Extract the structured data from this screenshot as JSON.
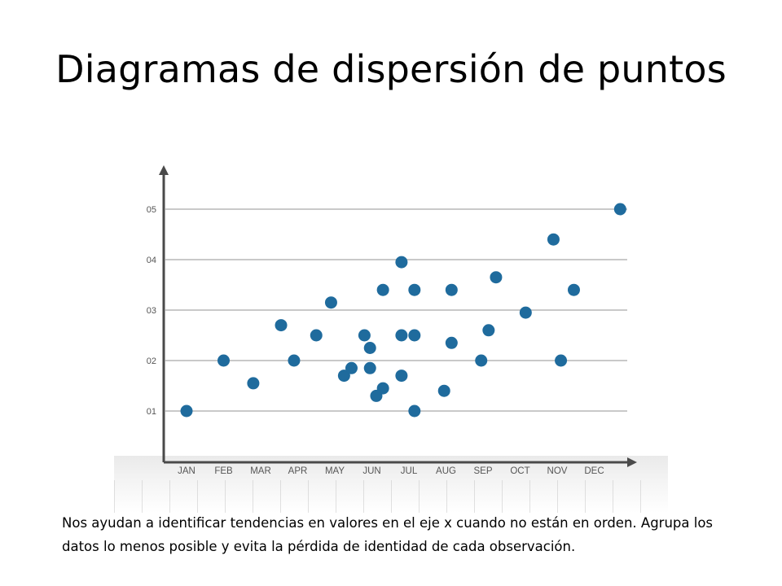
{
  "slide": {
    "title": "Diagramas de dispersión de puntos",
    "caption": "Nos ayudan a identificar tendencias en valores en el eje x cuando no están en orden. Agrupa los datos lo menos posible y evita la pérdida de identidad de cada observación."
  },
  "colors": {
    "point": "#1f6b9d",
    "axis": "#4a4a4a",
    "grid": "#c9c9c9",
    "tick_label": "#555555"
  },
  "chart_data": {
    "type": "scatter",
    "title": "",
    "xlabel": "",
    "ylabel": "",
    "categories": [
      "JAN",
      "FEB",
      "MAR",
      "APR",
      "MAY",
      "JUN",
      "JUL",
      "AUG",
      "SEP",
      "OCT",
      "NOV",
      "DEC"
    ],
    "y_ticks": [
      "01",
      "02",
      "03",
      "04",
      "05"
    ],
    "ylim": [
      0.2,
      5.2
    ],
    "grid": true,
    "points": [
      {
        "x": 1.0,
        "y": 1.0
      },
      {
        "x": 2.0,
        "y": 2.0
      },
      {
        "x": 2.8,
        "y": 1.55
      },
      {
        "x": 3.55,
        "y": 2.7
      },
      {
        "x": 3.9,
        "y": 2.0
      },
      {
        "x": 4.5,
        "y": 2.5
      },
      {
        "x": 4.9,
        "y": 3.15
      },
      {
        "x": 5.25,
        "y": 1.7
      },
      {
        "x": 5.45,
        "y": 1.85
      },
      {
        "x": 5.8,
        "y": 2.5
      },
      {
        "x": 5.95,
        "y": 2.25
      },
      {
        "x": 5.95,
        "y": 1.85
      },
      {
        "x": 6.12,
        "y": 1.3
      },
      {
        "x": 6.3,
        "y": 1.45
      },
      {
        "x": 6.3,
        "y": 3.4
      },
      {
        "x": 6.8,
        "y": 3.95
      },
      {
        "x": 6.8,
        "y": 2.5
      },
      {
        "x": 6.8,
        "y": 1.7
      },
      {
        "x": 7.15,
        "y": 3.4
      },
      {
        "x": 7.15,
        "y": 2.5
      },
      {
        "x": 7.15,
        "y": 1.0
      },
      {
        "x": 7.95,
        "y": 1.4
      },
      {
        "x": 8.15,
        "y": 3.4
      },
      {
        "x": 8.15,
        "y": 2.35
      },
      {
        "x": 8.95,
        "y": 2.0
      },
      {
        "x": 9.15,
        "y": 2.6
      },
      {
        "x": 9.35,
        "y": 3.65
      },
      {
        "x": 10.15,
        "y": 2.95
      },
      {
        "x": 10.9,
        "y": 4.4
      },
      {
        "x": 11.1,
        "y": 2.0
      },
      {
        "x": 11.45,
        "y": 3.4
      },
      {
        "x": 12.7,
        "y": 5.0
      }
    ]
  }
}
